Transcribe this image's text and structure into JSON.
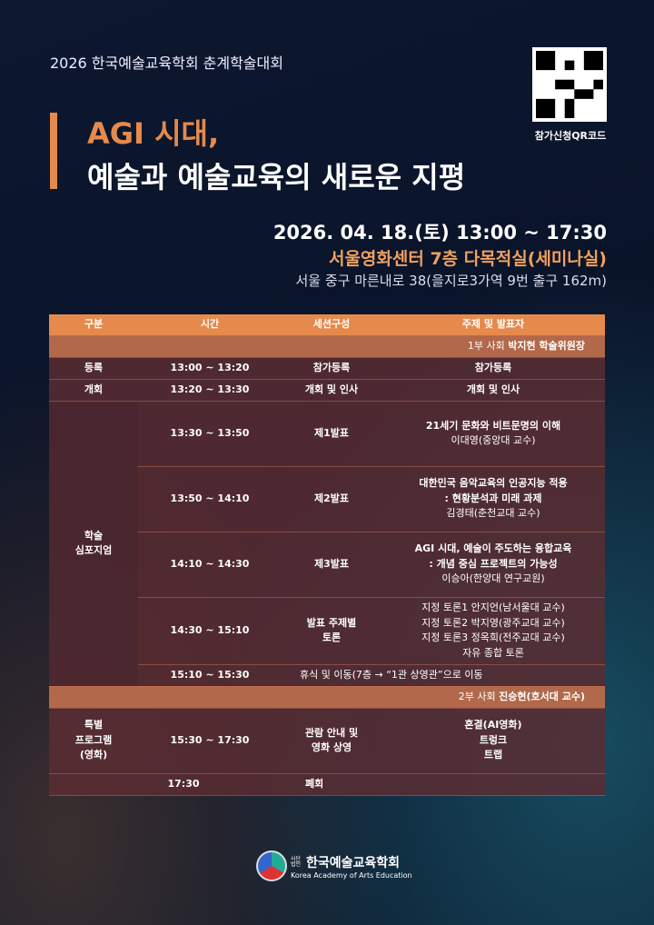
{
  "header": {
    "subtitle": "2026 한국예술교육학회 춘계학술대회",
    "title_line1": "AGI 시대,",
    "title_line2": "예술과 예술교육의 새로운 지평",
    "qr_label": "참가신청QR코드"
  },
  "event": {
    "datetime": "2026. 04. 18.(토) 13:00 ~ 17:30",
    "venue": "서울영화센터 7층 다목적실(세미나실)",
    "address": "서울 중구 마른내로 38(을지로3가역 9번 출구 162m)"
  },
  "table": {
    "columns": [
      "구분",
      "시간",
      "세션구성",
      "주제 및 발표자"
    ],
    "part1": {
      "prefix": "1부 사회",
      "host": "박지현 학술위원장"
    },
    "rows": [
      {
        "category": "등록",
        "time": "13:00 ~ 13:20",
        "session": "참가등록",
        "topic": "참가등록"
      },
      {
        "category": "개회",
        "time": "13:20 ~ 13:30",
        "session": "개회 및 인사",
        "topic": "개회 및 인사"
      },
      {
        "category": "학술\n심포지엄",
        "time": "13:30 ~ 13:50",
        "session": "제1발표",
        "topic": "21세기 문화와 비트문명의 이해",
        "speaker": "이대영(중앙대 교수)"
      },
      {
        "time": "13:50 ~ 14:10",
        "session": "제2발표",
        "topic": "대한민국 음악교육의 인공지능 적용\n: 현황분석과 미래 과제",
        "speaker": "김경태(춘천교대 교수)"
      },
      {
        "time": "14:10 ~ 14:30",
        "session": "제3발표",
        "topic": "AGI 시대, 예술이 주도하는 융합교육\n: 개념 중심 프로젝트의 가능성",
        "speaker": "이승아(한양대 연구교원)"
      },
      {
        "time": "14:30 ~ 15:10",
        "session": "발표 주제별\n토론",
        "topic": "지정 토론1 안지언(남서울대 교수)\n지정 토론2 박지영(광주교대 교수)\n지정 토론3 정옥희(전주교대 교수)\n자유 종합 토론"
      },
      {
        "time": "15:10 ~ 15:30",
        "topic": "휴식 및 이동(7층 → “1관 상영관”으로 이동"
      }
    ],
    "part2": {
      "prefix": "2부 사회",
      "host": "진승현(호서대 교수)"
    },
    "special": {
      "category": "특별\n프로그램\n(영화)",
      "time": "15:30 ~ 17:30",
      "session": "관람 안내 및\n영화 상영",
      "topic": "혼결(AI영화)\n트렁크\n트랩"
    },
    "closing": {
      "time": "17:30",
      "label": "폐회"
    }
  },
  "footer": {
    "org_prefix": "사단법인",
    "org_name": "한국예술교육학회",
    "org_name_en": "Korea Academy of Arts Education"
  },
  "colors": {
    "accent": "#e58a4c",
    "background": "#0a1328"
  }
}
